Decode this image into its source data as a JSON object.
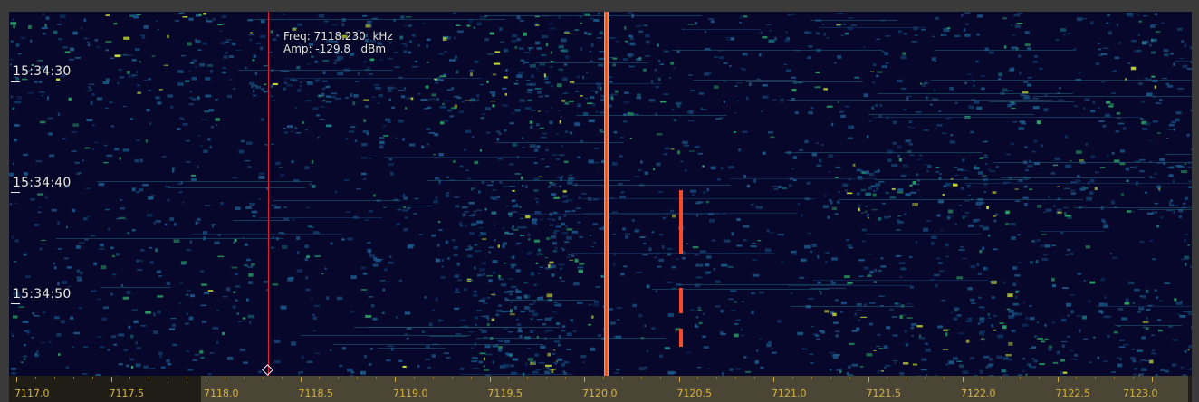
{
  "waterfall": {
    "readout": {
      "freq_line": "Freq: 7118.230  kHz",
      "amp_line": "Amp: -129.8   dBm"
    },
    "time_labels": [
      "15:34:30",
      "15:34:40",
      "15:34:50"
    ],
    "cursor_frequency_khz": 7118.23,
    "carrier_frequency_khz": 7120.0
  },
  "axis": {
    "labels": [
      "7117.0",
      "7117.5",
      "7118.0",
      "7118.5",
      "7119.0",
      "7119.5",
      "7120.0",
      "7120.5",
      "7121.0",
      "7121.5",
      "7122.0",
      "7122.5",
      "7123.0"
    ]
  },
  "colors": {
    "background": "#06072b",
    "carrier": "#ff3a2a",
    "cursor": "#e0203a",
    "axis_text": "#d8b640",
    "signal_low": "#1b5a8a",
    "signal_mid": "#2fb36a",
    "signal_high": "#d6e83a"
  }
}
